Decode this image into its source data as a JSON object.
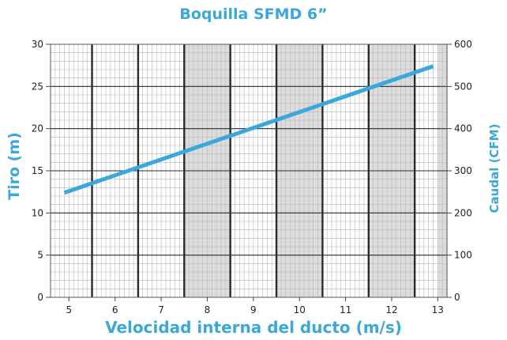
{
  "chart_data": {
    "type": "line",
    "title": "Boquilla SFMD 6”",
    "xlabel": "Velocidad interna del ducto (m/s)",
    "ylabel": "Tiro (m)",
    "y2label": "Caudal (CFM)",
    "xlim": [
      4.6,
      13.2
    ],
    "ylim": [
      0,
      30
    ],
    "y2lim": [
      0,
      600
    ],
    "x_ticks": [
      "5",
      "6",
      "7",
      "8",
      "9",
      "10",
      "11",
      "12",
      "13"
    ],
    "y_ticks": [
      "0",
      "5",
      "10",
      "15",
      "20",
      "25",
      "30"
    ],
    "y2_ticks": [
      "0",
      "100",
      "200",
      "300",
      "400",
      "500",
      "600"
    ],
    "grid": true,
    "series": [
      {
        "x": [
          4.9,
          12.9
        ],
        "y": [
          12.4,
          27.4
        ]
      }
    ],
    "colors": {
      "accent": "#3aa8d8",
      "shade": "#dcdcdc",
      "grid_minor": "#b8b8b8",
      "grid_major": "#2b2b2b"
    }
  }
}
